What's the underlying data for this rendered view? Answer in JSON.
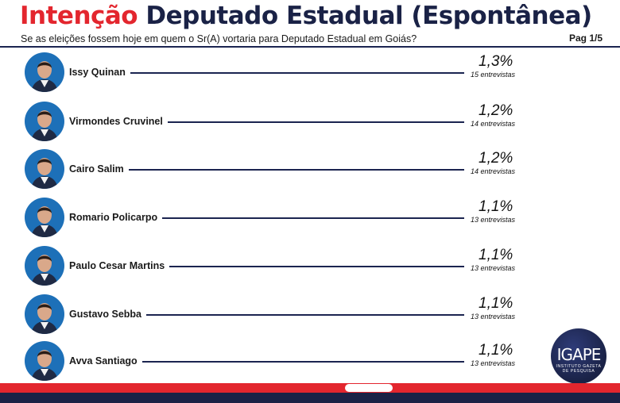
{
  "header": {
    "title_part1": "Intenção",
    "title_part2": "Deputado Estadual (Espontânea)",
    "subtitle": "Se as eleições fossem hoje em quem o Sr(A) vortaria para Deputado Estadual em Goiás?",
    "page": "Pag 1/5"
  },
  "chart_data": {
    "type": "bar",
    "title": "Intenção Deputado Estadual (Espontânea)",
    "subtitle": "Se as eleições fossem hoje em quem o Sr(A) vortaria para Deputado Estadual em Goiás?",
    "categories": [
      "Issy Quinan",
      "Virmondes Cruvinel",
      "Cairo Salim",
      "Romario Policarpo",
      "Paulo Cesar Martins",
      "Gustavo Sebba",
      "Avva Santiago"
    ],
    "values": [
      1.3,
      1.2,
      1.2,
      1.1,
      1.1,
      1.1,
      1.1
    ],
    "value_labels": [
      "1,3%",
      "1,2%",
      "1,2%",
      "1,1%",
      "1,1%",
      "1,1%",
      "1,1%"
    ],
    "counts": [
      "15 entrevistas",
      "14 entrevistas",
      "14 entrevistas",
      "13 entrevistas",
      "13 entrevistas",
      "13 entrevistas",
      "13 entrevistas"
    ],
    "unit": "%",
    "grid": false,
    "legend": "none"
  },
  "logo": {
    "text": "IGAPE",
    "subtext1": "INSTITUTO GAZETA",
    "subtext2": "DE PESQUISA"
  },
  "colors": {
    "accent_red": "#e3262e",
    "navy": "#1a2246",
    "avatar_bg": "#1d70b8"
  }
}
